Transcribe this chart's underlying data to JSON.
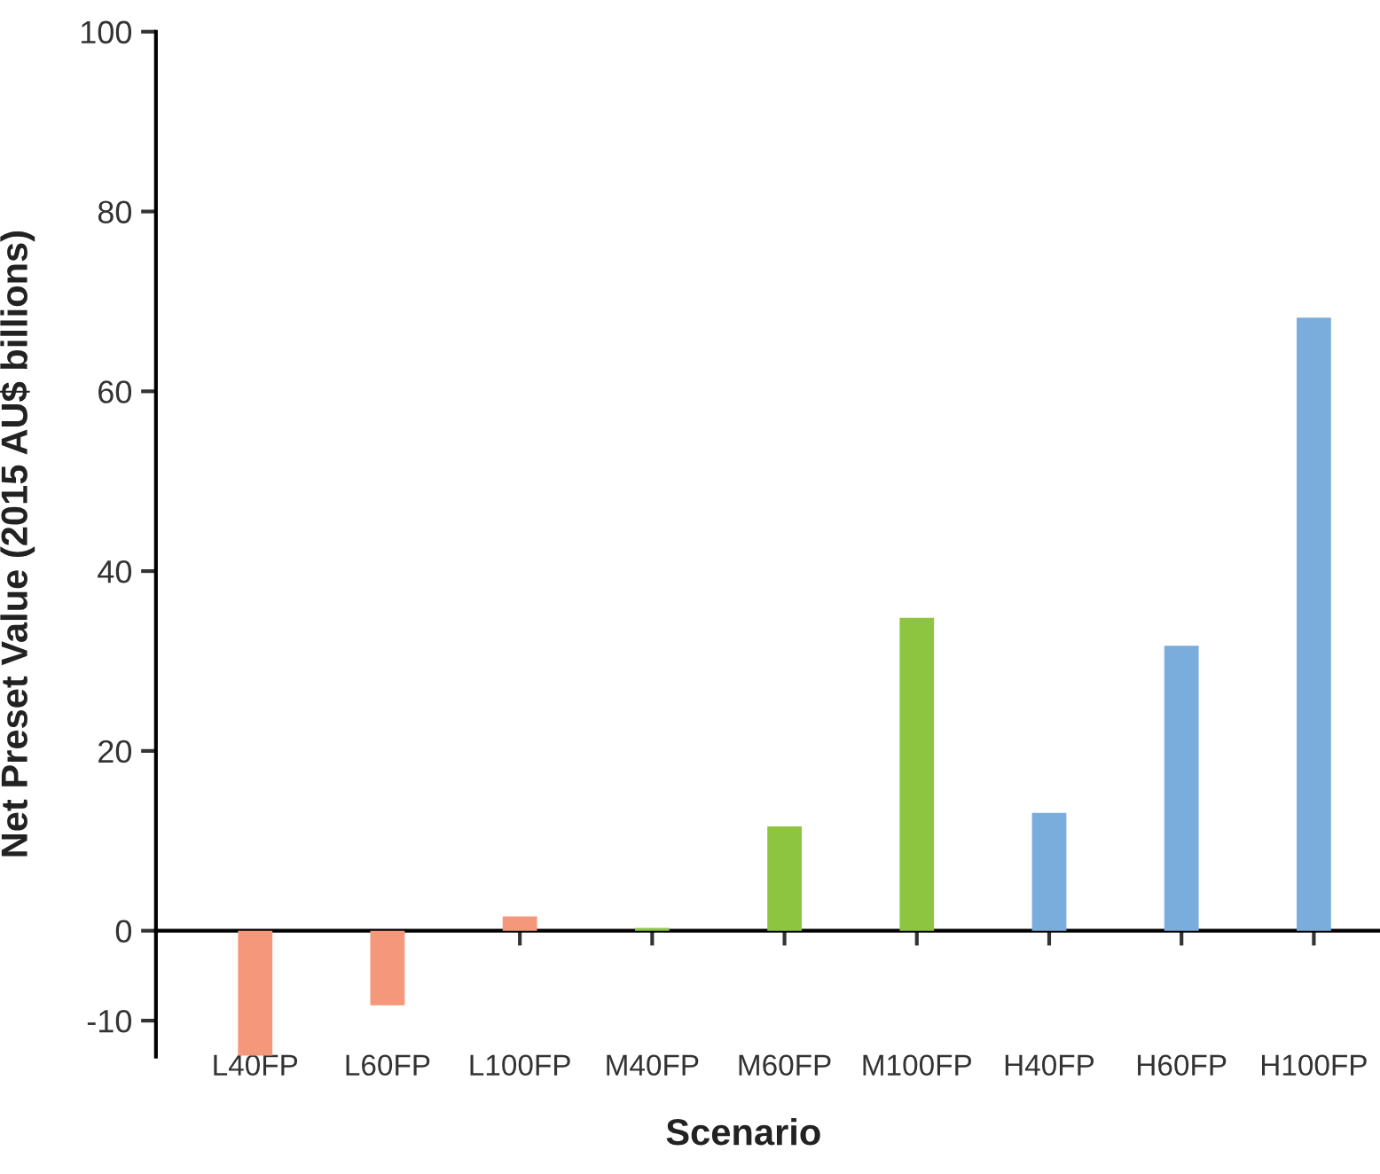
{
  "chart_data": {
    "type": "bar",
    "xlabel": "Scenario",
    "ylabel": "Net Preset Value (2015 AU$ billions)",
    "categories": [
      "L40FP",
      "L60FP",
      "L100FP",
      "M40FP",
      "M60FP",
      "M100FP",
      "H40FP",
      "H60FP",
      "H100FP"
    ],
    "values": [
      -13.9,
      -8.3,
      1.6,
      0.3,
      11.6,
      34.8,
      13.1,
      31.7,
      68.2
    ],
    "colors": [
      "#f4977a",
      "#f4977a",
      "#f4977a",
      "#8dc540",
      "#8dc540",
      "#8dc540",
      "#7aaddc",
      "#7aaddc",
      "#7aaddc"
    ],
    "ylim": [
      -14,
      100
    ],
    "yticks": [
      -10,
      0,
      20,
      40,
      60,
      80,
      100
    ],
    "legend": false
  }
}
